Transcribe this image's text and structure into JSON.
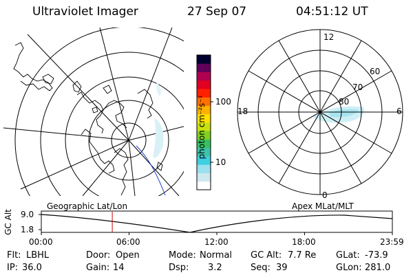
{
  "header": {
    "instrument": "Ultraviolet Imager",
    "date": "27 Sep 07",
    "time": "04:51:12 UT"
  },
  "colorbar": {
    "unit_label": "photon cm⁻²s⁻¹",
    "tick_100": "100",
    "tick_10": "10",
    "colors": [
      "#ffffff",
      "#cfe8f0",
      "#9be0ef",
      "#3fd0e0",
      "#3cc3a8",
      "#38c060",
      "#7fd020",
      "#c8e010",
      "#ffe000",
      "#ffb000",
      "#ff7000",
      "#ff2000",
      "#e00020",
      "#b00050",
      "#60005a",
      "#000030"
    ]
  },
  "geo_map": {
    "label": "Geographic Lat/Lon"
  },
  "polar_plot": {
    "label": "Apex MLat/MLT",
    "mlt_12": "12",
    "mlt_18": "18",
    "mlt_6": "6",
    "mlt_0": "0",
    "lat_60": "60",
    "lat_70": "70",
    "lat_80": "80"
  },
  "altitude_strip": {
    "axis_label": "GC Alt",
    "y_max": "9.0",
    "y_min": "1.8",
    "x_ticks": [
      "00:00",
      "06:00",
      "12:00",
      "18:00",
      "23:59"
    ],
    "marker_time": "04:51:12",
    "marker_color": "#d00000"
  },
  "status": {
    "filter_key": "Flt:",
    "filter_val": "LBHL",
    "door_key": "Door:",
    "door_val": "Open",
    "mode_key": "Mode:",
    "mode_val": "Normal",
    "gcalt_key": "GC Alt:",
    "gcalt_val": "7.7 Re",
    "glat_key": "GLat:",
    "glat_val": "-73.9",
    "ip_key": "IP:",
    "ip_val": "36.0",
    "gain_key": "Gain:",
    "gain_val": "14",
    "dsp_key": "Dsp:",
    "dsp_val": "3.2",
    "seq_key": "Seq:",
    "seq_val": "39",
    "glon_key": "GLon:",
    "glon_val": "281.0"
  }
}
